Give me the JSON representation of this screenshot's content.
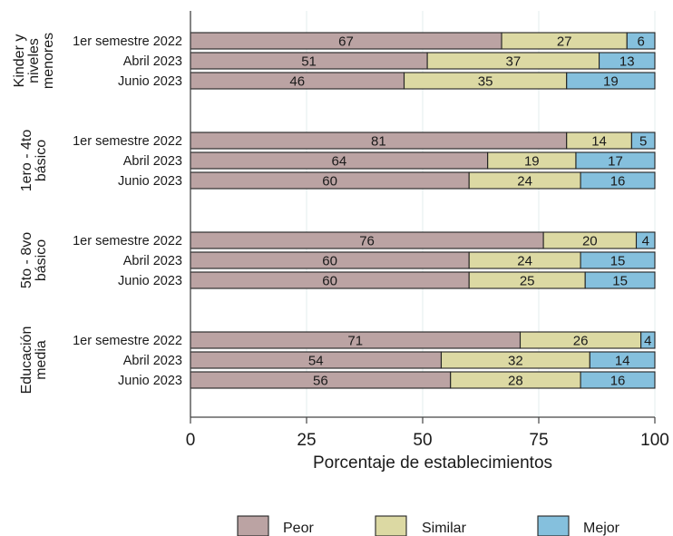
{
  "chart_data": {
    "type": "bar",
    "orientation": "horizontal",
    "stacked": true,
    "xlabel": "Porcentaje de establecimientos",
    "xlim": [
      0,
      100
    ],
    "xticks": [
      "0",
      "25",
      "50",
      "75",
      "100"
    ],
    "grid": true,
    "legend_position": "bottom",
    "series": [
      {
        "name": "Peor",
        "color": "#bba3a3"
      },
      {
        "name": "Similar",
        "color": "#dcd9a3"
      },
      {
        "name": "Mejor",
        "color": "#85c0dd"
      }
    ],
    "groups": [
      {
        "label_lines": [
          "Kinder y",
          "niveles",
          "menores"
        ],
        "rows": [
          {
            "category": "1er semestre 2022",
            "values": [
              67,
              27,
              6
            ]
          },
          {
            "category": "Abril 2023",
            "values": [
              51,
              37,
              13
            ]
          },
          {
            "category": "Junio 2023",
            "values": [
              46,
              35,
              19
            ]
          }
        ]
      },
      {
        "label_lines": [
          "1ero - 4to",
          "básico"
        ],
        "rows": [
          {
            "category": "1er semestre 2022",
            "values": [
              81,
              14,
              5
            ]
          },
          {
            "category": "Abril 2023",
            "values": [
              64,
              19,
              17
            ]
          },
          {
            "category": "Junio 2023",
            "values": [
              60,
              24,
              16
            ]
          }
        ]
      },
      {
        "label_lines": [
          "5to - 8vo",
          "básico"
        ],
        "rows": [
          {
            "category": "1er semestre 2022",
            "values": [
              76,
              20,
              4
            ]
          },
          {
            "category": "Abril 2023",
            "values": [
              60,
              24,
              15
            ]
          },
          {
            "category": "Junio 2023",
            "values": [
              60,
              25,
              15
            ]
          }
        ]
      },
      {
        "label_lines": [
          "Educación",
          "media"
        ],
        "rows": [
          {
            "category": "1er semestre 2022",
            "values": [
              71,
              26,
              4
            ]
          },
          {
            "category": "Abril 2023",
            "values": [
              54,
              32,
              14
            ]
          },
          {
            "category": "Junio 2023",
            "values": [
              56,
              28,
              16
            ]
          }
        ]
      }
    ]
  }
}
